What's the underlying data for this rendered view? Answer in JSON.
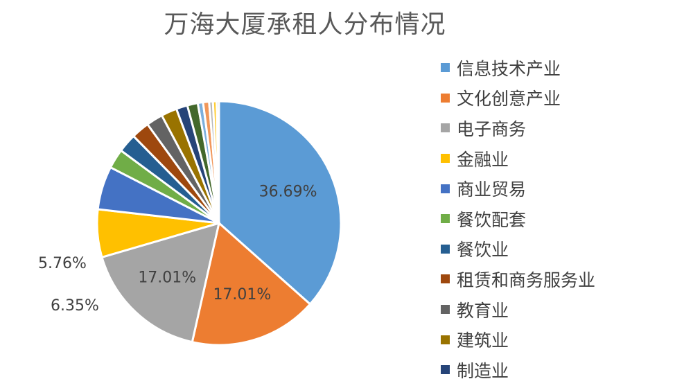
{
  "chart_data": {
    "type": "pie",
    "title": "万海大厦承租人分布情况",
    "slices": [
      {
        "name": "信息技术产业",
        "value": 36.69,
        "label": "36.69%",
        "color": "#5B9BD5"
      },
      {
        "name": "文化创意产业",
        "value": 17.01,
        "label": "17.01%",
        "color": "#ED7D31"
      },
      {
        "name": "电子商务",
        "value": 17.01,
        "label": "17.01%",
        "color": "#A5A5A5"
      },
      {
        "name": "金融业",
        "value": 6.35,
        "label": "6.35%",
        "color": "#FFC000"
      },
      {
        "name": "商业贸易",
        "value": 5.76,
        "label": "5.76%",
        "color": "#4472C4"
      },
      {
        "name": "餐饮配套",
        "value": 2.6,
        "label": "",
        "color": "#70AD47"
      },
      {
        "name": "餐饮业",
        "value": 2.5,
        "label": "",
        "color": "#255E91"
      },
      {
        "name": "租赁和商务服务业",
        "value": 2.4,
        "label": "",
        "color": "#9E480E"
      },
      {
        "name": "教育业",
        "value": 2.2,
        "label": "",
        "color": "#636363"
      },
      {
        "name": "建筑业",
        "value": 2.1,
        "label": "",
        "color": "#997300"
      },
      {
        "name": "制造业",
        "value": 1.5,
        "label": "",
        "color": "#264478"
      },
      {
        "name": "",
        "value": 1.4,
        "label": "",
        "color": "#43682B"
      },
      {
        "name": "",
        "value": 0.7,
        "label": "",
        "color": "#7CAFDD"
      },
      {
        "name": "",
        "value": 0.8,
        "label": "",
        "color": "#F1975A"
      },
      {
        "name": "",
        "value": 0.5,
        "label": "",
        "color": "#B7B7B7"
      },
      {
        "name": "",
        "value": 0.5,
        "label": "",
        "color": "#FFCD33"
      },
      {
        "name": "",
        "value": 0.3,
        "label": "",
        "color": "#698ED0"
      }
    ],
    "legend_position": "right",
    "legend_visible_count": 11
  }
}
